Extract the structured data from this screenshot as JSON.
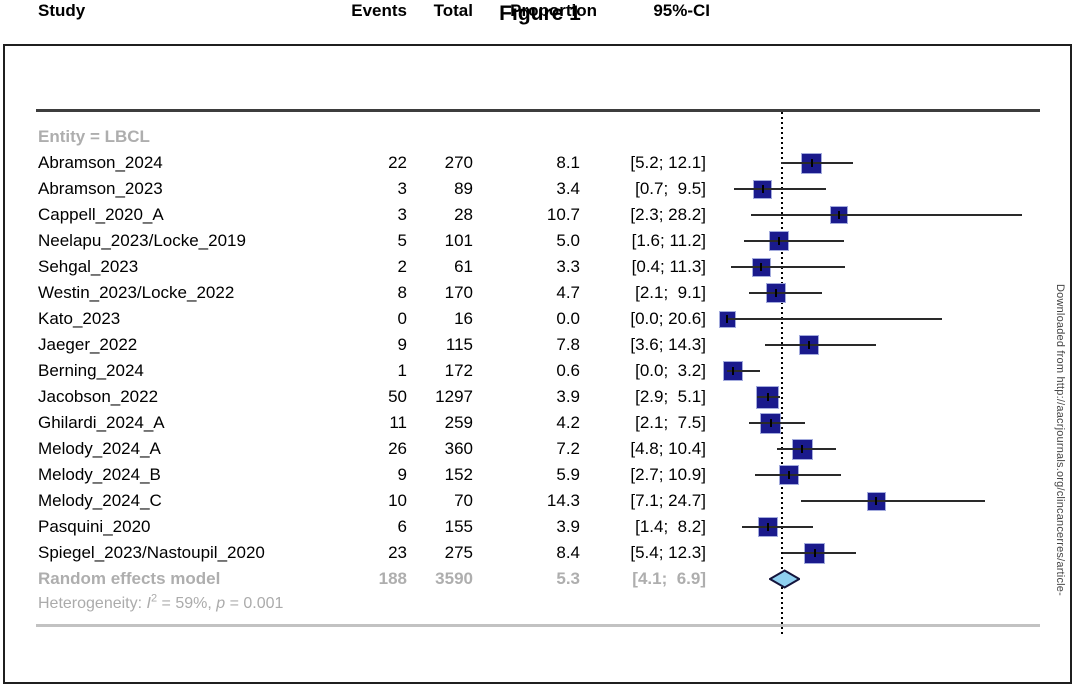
{
  "figure": {
    "title": "Figure 1"
  },
  "watermark": "Downloaded from http://aacrjournals.org/clincancerres/article-",
  "colors": {
    "square_fill": "#1a1a8c",
    "square_halo": "#a3abdd",
    "ci_line": "#2a2a2a",
    "diamond_fill": "#8fd0f0",
    "diamond_stroke": "#14143c",
    "gray_text": "#aeaeae",
    "header_rule": "#3d3d3d",
    "bottom_rule": "#c2c2c2"
  },
  "chart_data": {
    "type": "forest",
    "title": "Figure 1",
    "effect_measure": "Proportion (%)",
    "legend_position": "none",
    "reference_line": 5.3,
    "x_range_visible": [
      0,
      30
    ],
    "columns": [
      "Study",
      "Events",
      "Total",
      "Proportion",
      "95%-CI"
    ],
    "group_label": "Entity = LBCL",
    "rows": [
      {
        "study": "Abramson_2024",
        "events": "22",
        "total": "270",
        "proportion": "8.1",
        "ci": "[5.2; 12.1]",
        "est": 8.1,
        "lo": 5.2,
        "hi": 12.1,
        "size": 21
      },
      {
        "study": "Abramson_2023",
        "events": "3",
        "total": "89",
        "proportion": "3.4",
        "ci": "[0.7;  9.5]",
        "est": 3.4,
        "lo": 0.7,
        "hi": 9.5,
        "size": 19
      },
      {
        "study": "Cappell_2020_A",
        "events": "3",
        "total": "28",
        "proportion": "10.7",
        "ci": "[2.3; 28.2]",
        "est": 10.7,
        "lo": 2.3,
        "hi": 28.2,
        "size": 18
      },
      {
        "study": "Neelapu_2023/Locke_2019",
        "events": "5",
        "total": "101",
        "proportion": "5.0",
        "ci": "[1.6; 11.2]",
        "est": 5.0,
        "lo": 1.6,
        "hi": 11.2,
        "size": 20
      },
      {
        "study": "Sehgal_2023",
        "events": "2",
        "total": "61",
        "proportion": "3.3",
        "ci": "[0.4; 11.3]",
        "est": 3.3,
        "lo": 0.4,
        "hi": 11.3,
        "size": 19
      },
      {
        "study": "Westin_2023/Locke_2022",
        "events": "8",
        "total": "170",
        "proportion": "4.7",
        "ci": "[2.1;  9.1]",
        "est": 4.7,
        "lo": 2.1,
        "hi": 9.1,
        "size": 20
      },
      {
        "study": "Kato_2023",
        "events": "0",
        "total": "16",
        "proportion": "0.0",
        "ci": "[0.0; 20.6]",
        "est": 0.0,
        "lo": 0.0,
        "hi": 20.6,
        "size": 17
      },
      {
        "study": "Jaeger_2022",
        "events": "9",
        "total": "115",
        "proportion": "7.8",
        "ci": "[3.6; 14.3]",
        "est": 7.8,
        "lo": 3.6,
        "hi": 14.3,
        "size": 20
      },
      {
        "study": "Berning_2024",
        "events": "1",
        "total": "172",
        "proportion": "0.6",
        "ci": "[0.0;  3.2]",
        "est": 0.6,
        "lo": 0.0,
        "hi": 3.2,
        "size": 20
      },
      {
        "study": "Jacobson_2022",
        "events": "50",
        "total": "1297",
        "proportion": "3.9",
        "ci": "[2.9;  5.1]",
        "est": 3.9,
        "lo": 2.9,
        "hi": 5.1,
        "size": 23
      },
      {
        "study": "Ghilardi_2024_A",
        "events": "11",
        "total": "259",
        "proportion": "4.2",
        "ci": "[2.1;  7.5]",
        "est": 4.2,
        "lo": 2.1,
        "hi": 7.5,
        "size": 21
      },
      {
        "study": "Melody_2024_A",
        "events": "26",
        "total": "360",
        "proportion": "7.2",
        "ci": "[4.8; 10.4]",
        "est": 7.2,
        "lo": 4.8,
        "hi": 10.4,
        "size": 21
      },
      {
        "study": "Melody_2024_B",
        "events": "9",
        "total": "152",
        "proportion": "5.9",
        "ci": "[2.7; 10.9]",
        "est": 5.9,
        "lo": 2.7,
        "hi": 10.9,
        "size": 20
      },
      {
        "study": "Melody_2024_C",
        "events": "10",
        "total": "70",
        "proportion": "14.3",
        "ci": "[7.1; 24.7]",
        "est": 14.3,
        "lo": 7.1,
        "hi": 24.7,
        "size": 19
      },
      {
        "study": "Pasquini_2020",
        "events": "6",
        "total": "155",
        "proportion": "3.9",
        "ci": "[1.4;  8.2]",
        "est": 3.9,
        "lo": 1.4,
        "hi": 8.2,
        "size": 20
      },
      {
        "study": "Spiegel_2023/Nastoupil_2020",
        "events": "23",
        "total": "275",
        "proportion": "8.4",
        "ci": "[5.4; 12.3]",
        "est": 8.4,
        "lo": 5.4,
        "hi": 12.3,
        "size": 21
      }
    ],
    "summary": {
      "study": "Random effects model",
      "events": "188",
      "total": "3590",
      "proportion": "5.3",
      "ci": "[4.1;  6.9]",
      "est": 5.3,
      "lo": 4.1,
      "hi": 6.9
    },
    "heterogeneity": {
      "prefix": "Heterogeneity: ",
      "stat_italic": "I",
      "stat_sup": "2",
      "mid": " = 59%, ",
      "p_italic": "p",
      "tail": " = 0.001"
    }
  }
}
